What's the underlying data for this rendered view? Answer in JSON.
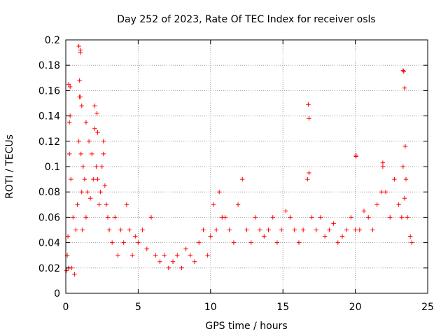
{
  "chart_data": {
    "type": "scatter",
    "title": "Day 252 of 2023, Rate Of TEC Index for receiver osls",
    "xlabel": "GPS time / hours",
    "ylabel": "ROTI / TECUs",
    "xlim": [
      0,
      25
    ],
    "ylim": [
      0,
      0.2
    ],
    "xticks": [
      0,
      5,
      10,
      15,
      20,
      25
    ],
    "xtick_labels": [
      "0",
      "5",
      "10",
      "15",
      "20",
      "25"
    ],
    "yticks": [
      0,
      0.02,
      0.04,
      0.06,
      0.08,
      0.1,
      0.12,
      0.14,
      0.16,
      0.18,
      0.2
    ],
    "ytick_labels": [
      "0",
      "0.02",
      "0.04",
      "0.06",
      "0.08",
      "0.1",
      "0.12",
      "0.14",
      "0.16",
      "0.18",
      "0.2"
    ],
    "grid": true,
    "marker": "+",
    "color": "#ff0000",
    "series": [
      {
        "x": [
          0.05,
          0.1,
          0.15,
          0.2,
          0.25,
          0.3,
          0.35,
          0.4,
          0.5,
          0.6,
          0.7,
          0.8,
          0.9,
          0.95,
          1.0,
          1.05,
          1.1,
          1.15,
          1.2,
          1.3,
          1.4,
          1.5,
          1.6,
          1.7,
          1.8,
          1.9,
          2.0,
          2.1,
          2.2,
          2.3,
          2.4,
          2.5,
          2.6,
          2.7,
          2.8,
          2.9,
          3.0,
          3.2,
          3.4,
          3.6,
          3.8,
          4.0,
          4.2,
          4.4,
          4.6,
          4.8,
          5.0,
          5.3,
          5.6,
          5.9,
          6.2,
          6.5,
          6.8,
          7.1,
          7.4,
          7.7,
          8.0,
          8.3,
          8.6,
          8.9,
          9.2,
          9.5,
          9.8,
          10.0,
          10.2,
          10.4,
          10.6,
          10.8,
          11.0,
          11.3,
          11.6,
          11.9,
          12.2,
          12.5,
          12.8,
          13.1,
          13.4,
          13.7,
          14.0,
          14.3,
          14.6,
          14.9,
          15.2,
          15.5,
          15.8,
          16.1,
          16.4,
          16.7,
          16.8,
          17.0,
          17.3,
          17.6,
          17.9,
          18.2,
          18.5,
          18.8,
          19.1,
          19.4,
          19.7,
          20.0,
          20.05,
          20.3,
          20.6,
          20.9,
          21.2,
          21.5,
          21.8,
          21.9,
          22.1,
          22.4,
          22.7,
          23.0,
          23.2,
          23.3,
          23.4,
          23.5,
          23.6,
          23.8,
          23.9,
          0.3,
          0.9,
          1.0,
          0.95,
          1.1,
          1.4,
          2.0,
          2.2,
          2.6,
          16.75,
          16.8,
          20.05,
          21.9,
          23.3,
          23.35,
          23.4,
          23.45,
          0.2,
          1.0,
          0.25,
          2.15
        ],
        "y": [
          0.018,
          0.03,
          0.045,
          0.02,
          0.11,
          0.14,
          0.09,
          0.02,
          0.06,
          0.015,
          0.05,
          0.07,
          0.12,
          0.155,
          0.19,
          0.11,
          0.08,
          0.05,
          0.1,
          0.09,
          0.06,
          0.08,
          0.12,
          0.075,
          0.11,
          0.09,
          0.13,
          0.1,
          0.09,
          0.07,
          0.08,
          0.1,
          0.12,
          0.085,
          0.07,
          0.06,
          0.05,
          0.04,
          0.06,
          0.03,
          0.05,
          0.04,
          0.07,
          0.05,
          0.03,
          0.045,
          0.04,
          0.05,
          0.035,
          0.06,
          0.03,
          0.025,
          0.03,
          0.02,
          0.025,
          0.03,
          0.02,
          0.035,
          0.03,
          0.025,
          0.04,
          0.05,
          0.03,
          0.045,
          0.07,
          0.05,
          0.08,
          0.06,
          0.06,
          0.05,
          0.04,
          0.07,
          0.09,
          0.05,
          0.04,
          0.06,
          0.05,
          0.045,
          0.05,
          0.06,
          0.04,
          0.05,
          0.065,
          0.06,
          0.05,
          0.04,
          0.05,
          0.09,
          0.095,
          0.06,
          0.05,
          0.06,
          0.045,
          0.05,
          0.055,
          0.04,
          0.045,
          0.05,
          0.06,
          0.05,
          0.109,
          0.05,
          0.065,
          0.06,
          0.05,
          0.07,
          0.08,
          0.103,
          0.08,
          0.06,
          0.09,
          0.07,
          0.06,
          0.1,
          0.075,
          0.09,
          0.06,
          0.045,
          0.04,
          0.163,
          0.195,
          0.192,
          0.168,
          0.148,
          0.135,
          0.148,
          0.127,
          0.11,
          0.149,
          0.138,
          0.108,
          0.1,
          0.176,
          0.175,
          0.162,
          0.116,
          0.165,
          0.155,
          0.135,
          0.142
        ]
      }
    ]
  }
}
